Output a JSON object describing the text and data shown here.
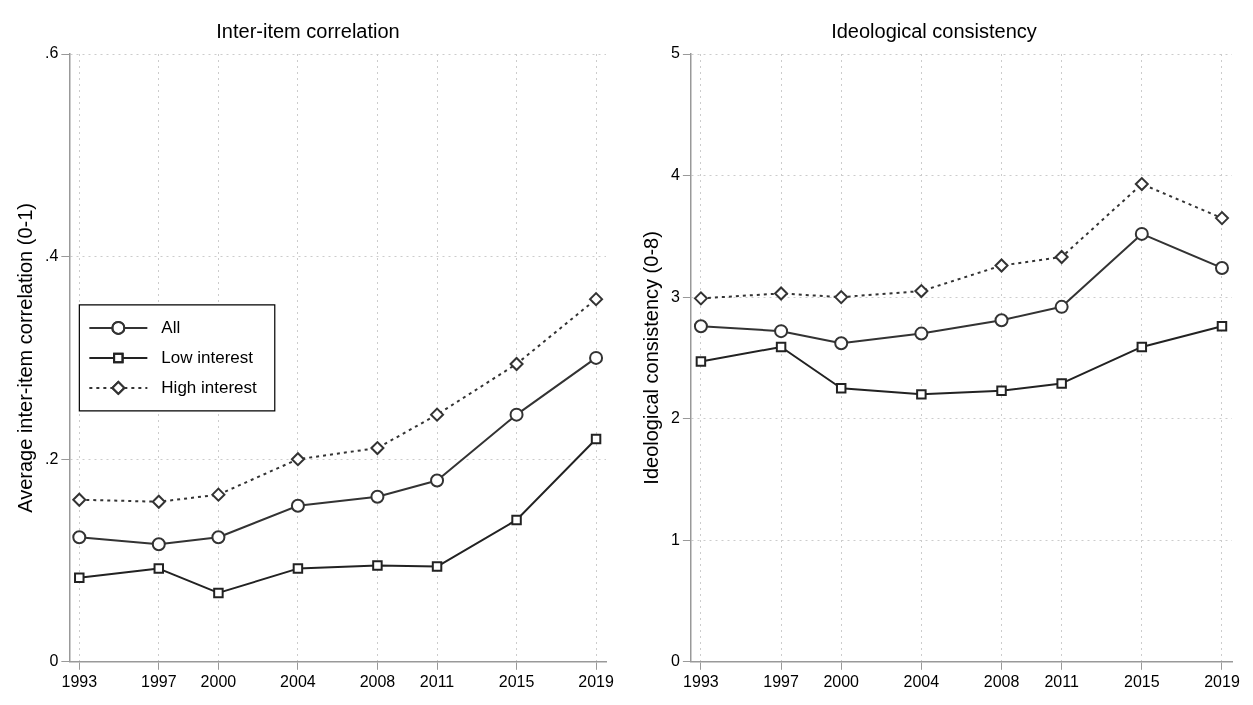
{
  "chart_data": [
    {
      "type": "line",
      "title": "Inter-item correlation",
      "ylabel": "Average inter-item correlation (0-1)",
      "x": [
        1993,
        1997,
        2000,
        2004,
        2008,
        2011,
        2015,
        2019
      ],
      "series": [
        {
          "name": "All",
          "color": "#333333",
          "marker": "circle",
          "line_style": "solid",
          "values": [
            0.123,
            0.116,
            0.123,
            0.154,
            0.163,
            0.179,
            0.244,
            0.3
          ]
        },
        {
          "name": "Low interest",
          "color": "#222222",
          "marker": "square",
          "line_style": "solid",
          "values": [
            0.083,
            0.092,
            0.068,
            0.092,
            0.095,
            0.094,
            0.14,
            0.22
          ]
        },
        {
          "name": "High interest",
          "color": "#333333",
          "marker": "diamond",
          "line_style": "dotted",
          "values": [
            0.16,
            0.158,
            0.165,
            0.2,
            0.211,
            0.244,
            0.294,
            0.358
          ]
        }
      ],
      "xlim": [
        1992.5,
        2019.5
      ],
      "xticks": [
        1993,
        1997,
        2000,
        2004,
        2008,
        2011,
        2015,
        2019
      ],
      "ylim": [
        0,
        0.6
      ],
      "yticks": [
        {
          "value": 0,
          "label": "0"
        },
        {
          "value": 0.2,
          "label": ".2"
        },
        {
          "value": 0.4,
          "label": ".4"
        },
        {
          "value": 0.6,
          "label": ".6"
        }
      ],
      "grid": true,
      "legend": "left"
    },
    {
      "type": "line",
      "title": "Ideological consistency",
      "ylabel": "Ideological consistency (0-8)",
      "x": [
        1993,
        1997,
        2000,
        2004,
        2008,
        2011,
        2015,
        2019
      ],
      "series": [
        {
          "color": "#333333",
          "marker": "circle",
          "line_style": "solid",
          "values": [
            2.76,
            2.72,
            2.62,
            2.7,
            2.81,
            2.92,
            3.52,
            3.24
          ]
        },
        {
          "color": "#222222",
          "marker": "square",
          "line_style": "solid",
          "values": [
            2.47,
            2.59,
            2.25,
            2.2,
            2.23,
            2.29,
            2.59,
            2.76
          ]
        },
        {
          "color": "#333333",
          "marker": "diamond",
          "line_style": "dotted",
          "values": [
            2.99,
            3.03,
            3.0,
            3.05,
            3.26,
            3.33,
            3.93,
            3.65
          ]
        }
      ],
      "xlim": [
        1992.5,
        2019.5
      ],
      "xticks": [
        1993,
        1997,
        2000,
        2004,
        2008,
        2011,
        2015,
        2019
      ],
      "ylim": [
        0,
        5
      ],
      "yticks": [
        0,
        1,
        2,
        3,
        4,
        5
      ],
      "grid": true
    }
  ]
}
